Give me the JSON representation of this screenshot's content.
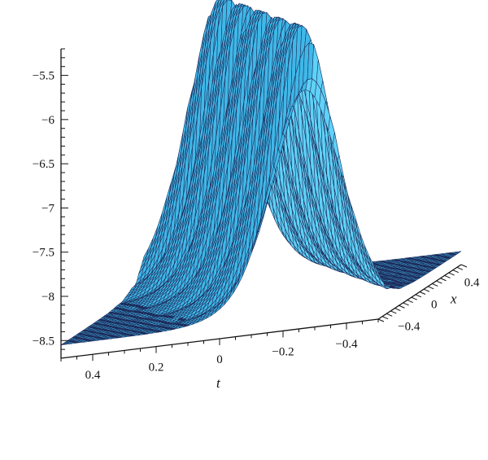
{
  "chart_data": {
    "type": "surface3d",
    "title": "",
    "xlabel": "x",
    "tlabel": "t",
    "zlabel": "",
    "x_range": [
      -0.5,
      0.5
    ],
    "t_range": [
      -0.5,
      0.5
    ],
    "zlim": [
      -8.7,
      -5.2
    ],
    "x_ticks": [
      {
        "value": 0.4,
        "label": "0.4"
      },
      {
        "value": 0,
        "label": "0"
      },
      {
        "value": -0.4,
        "label": "−0.4"
      }
    ],
    "t_ticks": [
      {
        "value": 0.4,
        "label": "0.4"
      },
      {
        "value": 0.2,
        "label": "0.2"
      },
      {
        "value": 0,
        "label": "0"
      },
      {
        "value": -0.2,
        "label": "−0.2"
      },
      {
        "value": -0.4,
        "label": "−0.4"
      }
    ],
    "z_ticks": [
      {
        "value": -5.5,
        "label": "−5.5"
      },
      {
        "value": -6,
        "label": "−6"
      },
      {
        "value": -6.5,
        "label": "−6.5"
      },
      {
        "value": -7,
        "label": "−7"
      },
      {
        "value": -7.5,
        "label": "−7.5"
      },
      {
        "value": -8,
        "label": "−8"
      },
      {
        "value": -8.5,
        "label": "−8.5"
      }
    ],
    "surface": {
      "baseline": -8.55,
      "peak": -5.3,
      "ridge_slope": 0.55,
      "ridge_width": 0.13,
      "ripple_amplitude": 0.22,
      "ripple_frequency": 38,
      "colors": {
        "face": "#3fb8e8",
        "edge": "#1e2b5a",
        "light": "#5fd2f7"
      }
    },
    "grid": false,
    "legend": "none"
  }
}
